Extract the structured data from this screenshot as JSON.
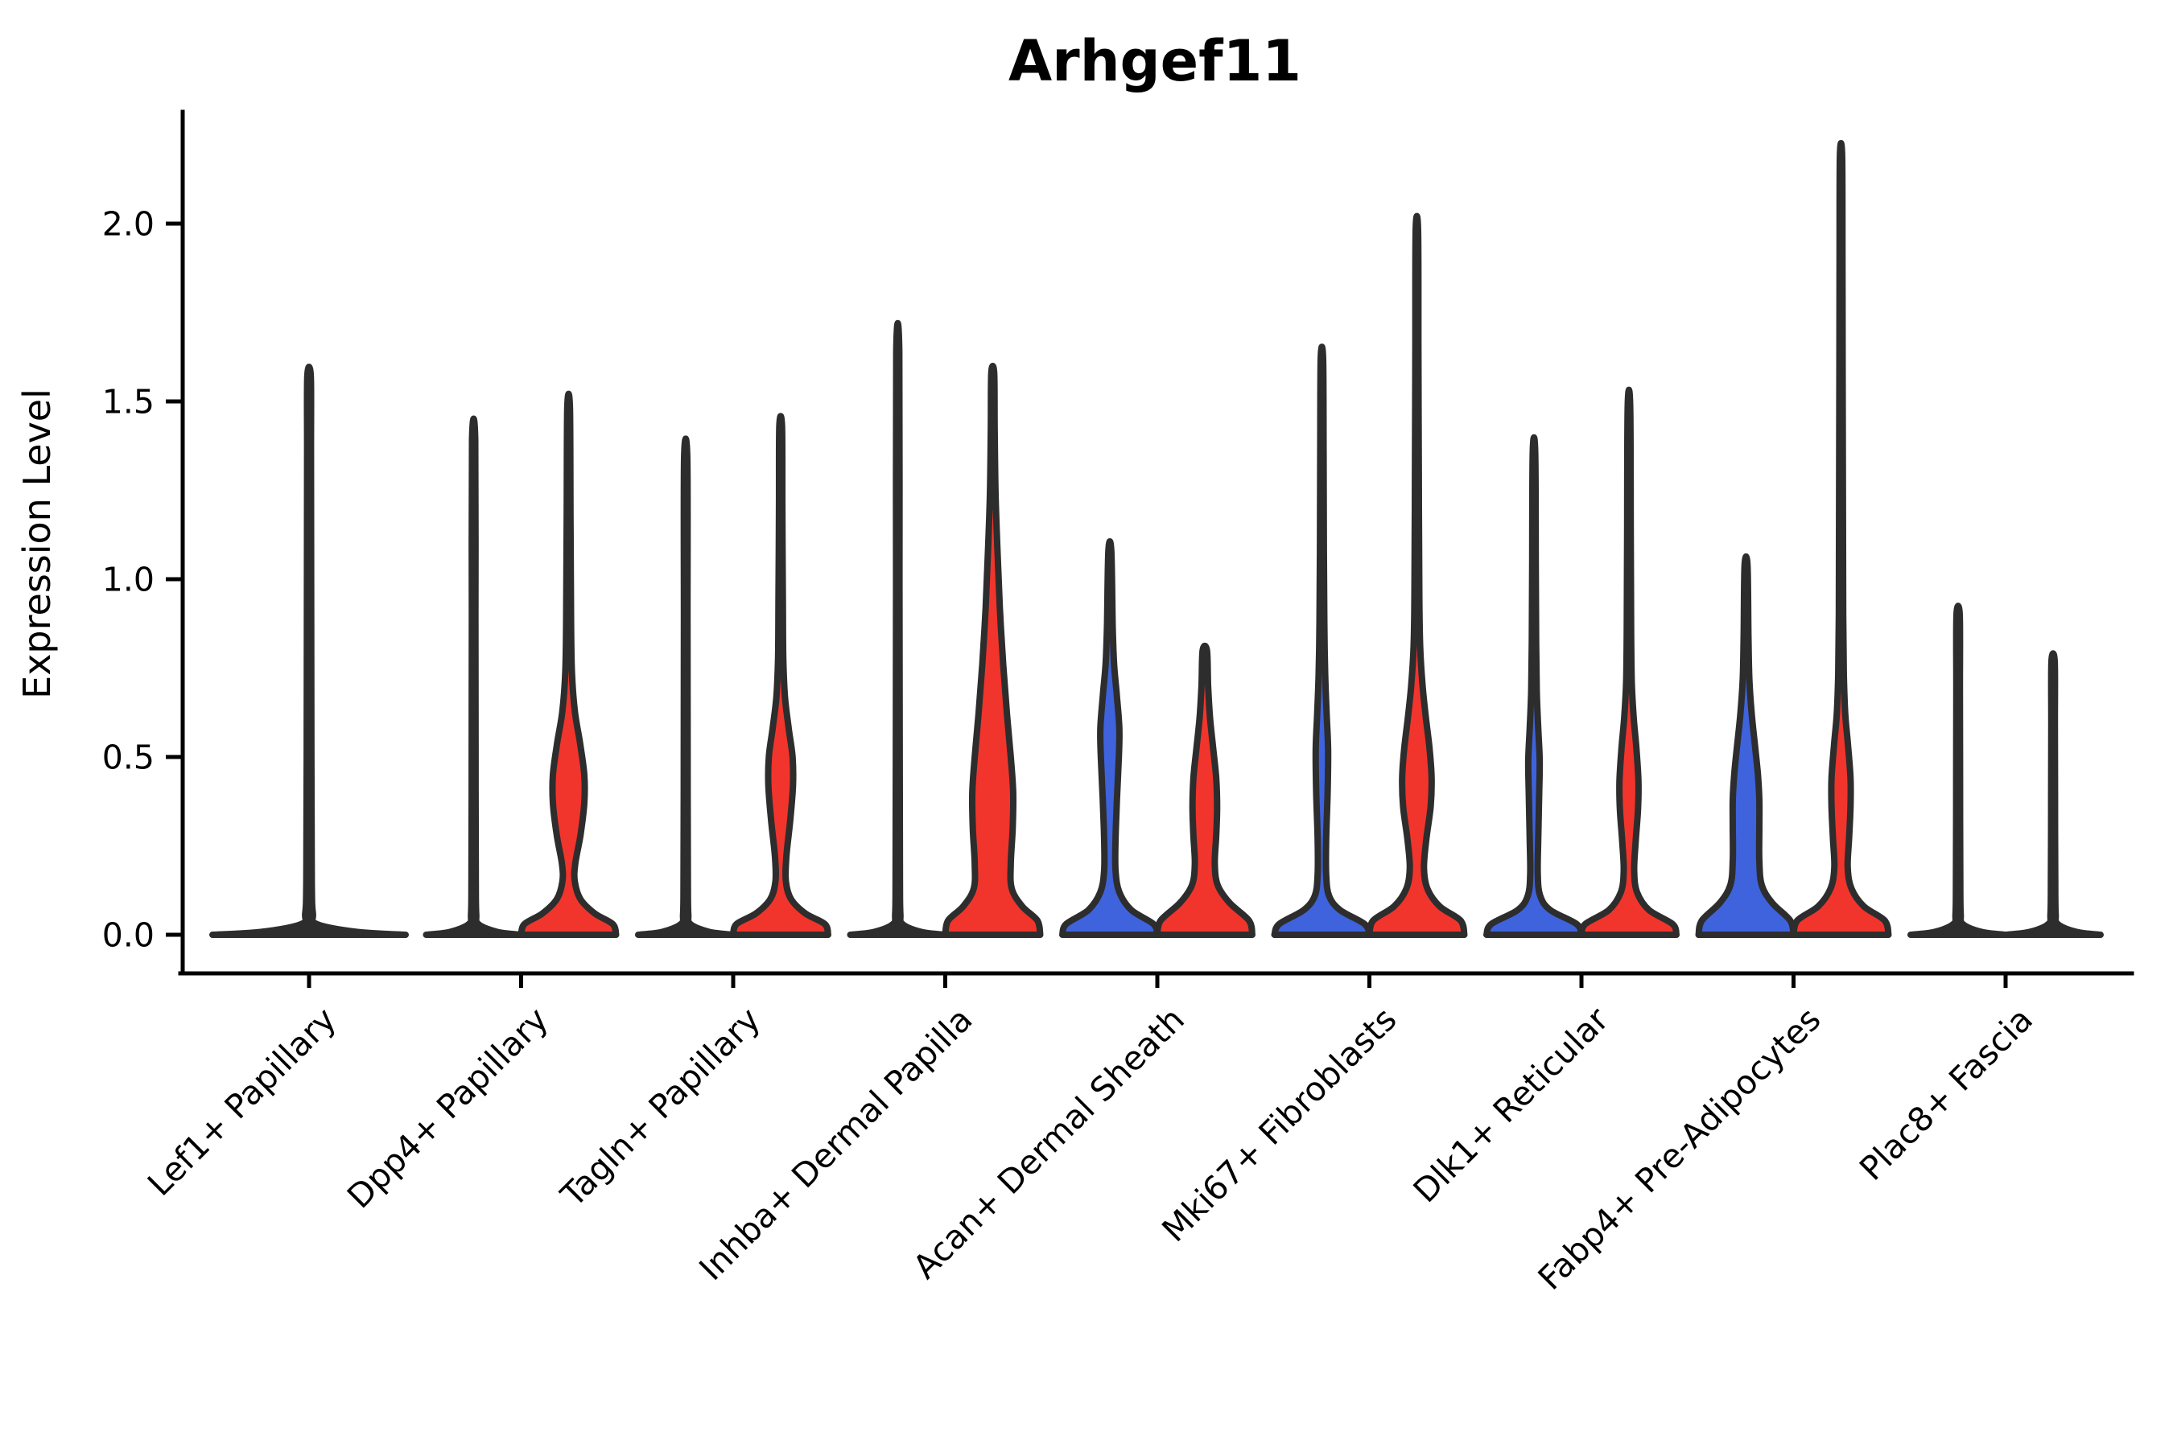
{
  "title": "Arhgef11",
  "y_axis": {
    "label": "Expression Level",
    "ticks": [
      "0.0",
      "0.5",
      "1.0",
      "1.5",
      "2.0"
    ],
    "tick_values": [
      0.0,
      0.5,
      1.0,
      1.5,
      2.0
    ]
  },
  "chart_data": {
    "type": "violin",
    "title": "Arhgef11",
    "ylabel": "Expression Level",
    "ylim": [
      0,
      2.31
    ],
    "grid": false,
    "legend": "none",
    "categories": [
      "Lef1+ Papillary",
      "Dpp4+ Papillary",
      "Tagln+ Papillary",
      "Inhba+ Dermal Papilla",
      "Acan+ Dermal Sheath",
      "Mki67+ Fibroblasts",
      "Dlk1+ Reticular",
      "Fabp4+ Pre-Adipocytes",
      "Plac8+ Fascia"
    ],
    "colors": {
      "blue": "#3E63DC",
      "red": "#F1352C",
      "outline": "#2D2D2D"
    },
    "violins": [
      {
        "category_index": 0,
        "category": "Lef1+ Papillary",
        "side": "center",
        "color": "dark",
        "max_expression": 1.57,
        "profile": [
          [
            0,
            1
          ],
          [
            0.008,
            0.5
          ],
          [
            0.03,
            0.08
          ],
          [
            0.06,
            0.04
          ],
          [
            0.15,
            0.028
          ],
          [
            0.5,
            0.024
          ],
          [
            1.0,
            0.022
          ],
          [
            1.35,
            0.02
          ],
          [
            1.57,
            0.018
          ]
        ]
      },
      {
        "category_index": 1,
        "category": "Dpp4+ Papillary",
        "side": "left",
        "color": "dark",
        "max_expression": 1.39,
        "profile": [
          [
            0,
            1
          ],
          [
            0.008,
            0.5
          ],
          [
            0.03,
            0.1
          ],
          [
            0.06,
            0.055
          ],
          [
            0.15,
            0.045
          ],
          [
            0.5,
            0.04
          ],
          [
            0.9,
            0.038
          ],
          [
            1.39,
            0.034
          ]
        ]
      },
      {
        "category_index": 1,
        "category": "Dpp4+ Papillary",
        "side": "right",
        "color": "red",
        "max_expression": 1.48,
        "profile": [
          [
            0,
            1
          ],
          [
            0.03,
            0.93
          ],
          [
            0.06,
            0.55
          ],
          [
            0.1,
            0.25
          ],
          [
            0.15,
            0.13
          ],
          [
            0.2,
            0.14
          ],
          [
            0.28,
            0.25
          ],
          [
            0.37,
            0.33
          ],
          [
            0.45,
            0.33
          ],
          [
            0.54,
            0.24
          ],
          [
            0.63,
            0.13
          ],
          [
            0.74,
            0.07
          ],
          [
            0.9,
            0.05
          ],
          [
            1.15,
            0.04
          ],
          [
            1.48,
            0.028
          ]
        ]
      },
      {
        "category_index": 2,
        "category": "Tagln+ Papillary",
        "side": "left",
        "color": "dark",
        "max_expression": 1.34,
        "profile": [
          [
            0,
            1
          ],
          [
            0.008,
            0.5
          ],
          [
            0.03,
            0.1
          ],
          [
            0.06,
            0.055
          ],
          [
            0.15,
            0.045
          ],
          [
            0.5,
            0.04
          ],
          [
            0.9,
            0.038
          ],
          [
            1.34,
            0.034
          ]
        ]
      },
      {
        "category_index": 2,
        "category": "Tagln+ Papillary",
        "side": "right",
        "color": "red",
        "max_expression": 1.43,
        "profile": [
          [
            0,
            1
          ],
          [
            0.03,
            0.93
          ],
          [
            0.06,
            0.52
          ],
          [
            0.1,
            0.22
          ],
          [
            0.15,
            0.11
          ],
          [
            0.22,
            0.12
          ],
          [
            0.32,
            0.2
          ],
          [
            0.42,
            0.26
          ],
          [
            0.5,
            0.25
          ],
          [
            0.58,
            0.17
          ],
          [
            0.67,
            0.09
          ],
          [
            0.78,
            0.055
          ],
          [
            0.95,
            0.045
          ],
          [
            1.2,
            0.035
          ],
          [
            1.43,
            0.028
          ]
        ]
      },
      {
        "category_index": 3,
        "category": "Inhba+ Dermal Papilla",
        "side": "left",
        "color": "dark",
        "max_expression": 1.64,
        "profile": [
          [
            0,
            1
          ],
          [
            0.008,
            0.5
          ],
          [
            0.03,
            0.1
          ],
          [
            0.06,
            0.055
          ],
          [
            0.15,
            0.045
          ],
          [
            0.5,
            0.04
          ],
          [
            1.0,
            0.036
          ],
          [
            1.64,
            0.032
          ]
        ]
      },
      {
        "category_index": 3,
        "category": "Inhba+ Dermal Papilla",
        "side": "right",
        "color": "red",
        "max_expression": 1.58,
        "profile": [
          [
            0,
            1
          ],
          [
            0.04,
            0.94
          ],
          [
            0.08,
            0.62
          ],
          [
            0.13,
            0.4
          ],
          [
            0.2,
            0.38
          ],
          [
            0.3,
            0.42
          ],
          [
            0.4,
            0.43
          ],
          [
            0.5,
            0.38
          ],
          [
            0.62,
            0.3
          ],
          [
            0.76,
            0.22
          ],
          [
            0.92,
            0.15
          ],
          [
            1.08,
            0.1
          ],
          [
            1.24,
            0.06
          ],
          [
            1.42,
            0.04
          ],
          [
            1.58,
            0.03
          ]
        ]
      },
      {
        "category_index": 4,
        "category": "Acan+ Dermal Sheath",
        "side": "left",
        "color": "blue",
        "max_expression": 1.08,
        "profile": [
          [
            0,
            1
          ],
          [
            0.03,
            0.92
          ],
          [
            0.07,
            0.45
          ],
          [
            0.12,
            0.2
          ],
          [
            0.18,
            0.12
          ],
          [
            0.27,
            0.12
          ],
          [
            0.38,
            0.15
          ],
          [
            0.5,
            0.19
          ],
          [
            0.58,
            0.2
          ],
          [
            0.67,
            0.15
          ],
          [
            0.76,
            0.09
          ],
          [
            0.87,
            0.06
          ],
          [
            1.08,
            0.03
          ]
        ]
      },
      {
        "category_index": 4,
        "category": "Acan+ Dermal Sheath",
        "side": "right",
        "color": "red",
        "max_expression": 0.8,
        "profile": [
          [
            0,
            1
          ],
          [
            0.04,
            0.93
          ],
          [
            0.09,
            0.52
          ],
          [
            0.14,
            0.27
          ],
          [
            0.2,
            0.21
          ],
          [
            0.28,
            0.24
          ],
          [
            0.36,
            0.26
          ],
          [
            0.44,
            0.24
          ],
          [
            0.52,
            0.18
          ],
          [
            0.61,
            0.11
          ],
          [
            0.7,
            0.07
          ],
          [
            0.8,
            0.045
          ]
        ]
      },
      {
        "category_index": 5,
        "category": "Mki67+ Fibroblasts",
        "side": "left",
        "color": "blue",
        "max_expression": 1.62,
        "profile": [
          [
            0,
            1
          ],
          [
            0.03,
            0.9
          ],
          [
            0.07,
            0.38
          ],
          [
            0.11,
            0.15
          ],
          [
            0.17,
            0.09
          ],
          [
            0.27,
            0.09
          ],
          [
            0.4,
            0.12
          ],
          [
            0.52,
            0.13
          ],
          [
            0.62,
            0.1
          ],
          [
            0.73,
            0.07
          ],
          [
            0.88,
            0.05
          ],
          [
            1.1,
            0.04
          ],
          [
            1.35,
            0.035
          ],
          [
            1.62,
            0.026
          ]
        ]
      },
      {
        "category_index": 5,
        "category": "Mki67+ Fibroblasts",
        "side": "right",
        "color": "red",
        "max_expression": 1.98,
        "profile": [
          [
            0,
            1
          ],
          [
            0.04,
            0.92
          ],
          [
            0.08,
            0.48
          ],
          [
            0.13,
            0.22
          ],
          [
            0.19,
            0.15
          ],
          [
            0.27,
            0.2
          ],
          [
            0.36,
            0.29
          ],
          [
            0.44,
            0.31
          ],
          [
            0.52,
            0.27
          ],
          [
            0.61,
            0.19
          ],
          [
            0.7,
            0.12
          ],
          [
            0.81,
            0.07
          ],
          [
            0.97,
            0.05
          ],
          [
            1.3,
            0.04
          ],
          [
            1.65,
            0.032
          ],
          [
            1.98,
            0.026
          ]
        ]
      },
      {
        "category_index": 6,
        "category": "Dlk1+ Reticular",
        "side": "left",
        "color": "blue",
        "max_expression": 1.36,
        "profile": [
          [
            0,
            1
          ],
          [
            0.03,
            0.9
          ],
          [
            0.07,
            0.34
          ],
          [
            0.11,
            0.13
          ],
          [
            0.17,
            0.08
          ],
          [
            0.27,
            0.09
          ],
          [
            0.4,
            0.11
          ],
          [
            0.49,
            0.12
          ],
          [
            0.58,
            0.09
          ],
          [
            0.68,
            0.06
          ],
          [
            0.82,
            0.045
          ],
          [
            1.05,
            0.038
          ],
          [
            1.36,
            0.026
          ]
        ]
      },
      {
        "category_index": 6,
        "category": "Dlk1+ Reticular",
        "side": "right",
        "color": "red",
        "max_expression": 1.49,
        "profile": [
          [
            0,
            1
          ],
          [
            0.03,
            0.92
          ],
          [
            0.07,
            0.42
          ],
          [
            0.12,
            0.17
          ],
          [
            0.18,
            0.11
          ],
          [
            0.26,
            0.14
          ],
          [
            0.35,
            0.19
          ],
          [
            0.43,
            0.2
          ],
          [
            0.52,
            0.16
          ],
          [
            0.61,
            0.1
          ],
          [
            0.71,
            0.06
          ],
          [
            0.86,
            0.045
          ],
          [
            1.15,
            0.038
          ],
          [
            1.49,
            0.026
          ]
        ]
      },
      {
        "category_index": 7,
        "category": "Fabp4+ Pre-Adipocytes",
        "side": "left",
        "color": "blue",
        "max_expression": 1.04,
        "profile": [
          [
            0,
            1
          ],
          [
            0.04,
            0.93
          ],
          [
            0.09,
            0.55
          ],
          [
            0.14,
            0.33
          ],
          [
            0.21,
            0.28
          ],
          [
            0.3,
            0.28
          ],
          [
            0.38,
            0.28
          ],
          [
            0.45,
            0.25
          ],
          [
            0.53,
            0.19
          ],
          [
            0.62,
            0.12
          ],
          [
            0.72,
            0.07
          ],
          [
            0.85,
            0.05
          ],
          [
            1.04,
            0.03
          ]
        ]
      },
      {
        "category_index": 7,
        "category": "Fabp4+ Pre-Adipocytes",
        "side": "right",
        "color": "red",
        "max_expression": 2.19,
        "profile": [
          [
            0,
            1
          ],
          [
            0.04,
            0.92
          ],
          [
            0.08,
            0.48
          ],
          [
            0.13,
            0.22
          ],
          [
            0.19,
            0.14
          ],
          [
            0.27,
            0.17
          ],
          [
            0.36,
            0.2
          ],
          [
            0.44,
            0.2
          ],
          [
            0.53,
            0.15
          ],
          [
            0.62,
            0.09
          ],
          [
            0.73,
            0.06
          ],
          [
            0.9,
            0.045
          ],
          [
            1.2,
            0.04
          ],
          [
            1.6,
            0.034
          ],
          [
            1.9,
            0.03
          ],
          [
            2.19,
            0.024
          ]
        ]
      },
      {
        "category_index": 8,
        "category": "Plac8+ Fascia",
        "side": "left",
        "color": "dark",
        "max_expression": 0.9,
        "profile": [
          [
            0,
            1
          ],
          [
            0.008,
            0.5
          ],
          [
            0.03,
            0.1
          ],
          [
            0.06,
            0.055
          ],
          [
            0.15,
            0.045
          ],
          [
            0.45,
            0.04
          ],
          [
            0.7,
            0.038
          ],
          [
            0.9,
            0.034
          ]
        ]
      },
      {
        "category_index": 8,
        "category": "Plac8+ Fascia",
        "side": "right",
        "color": "dark",
        "max_expression": 0.77,
        "profile": [
          [
            0,
            1
          ],
          [
            0.008,
            0.5
          ],
          [
            0.03,
            0.1
          ],
          [
            0.06,
            0.055
          ],
          [
            0.15,
            0.045
          ],
          [
            0.4,
            0.04
          ],
          [
            0.6,
            0.038
          ],
          [
            0.77,
            0.034
          ]
        ]
      }
    ]
  }
}
